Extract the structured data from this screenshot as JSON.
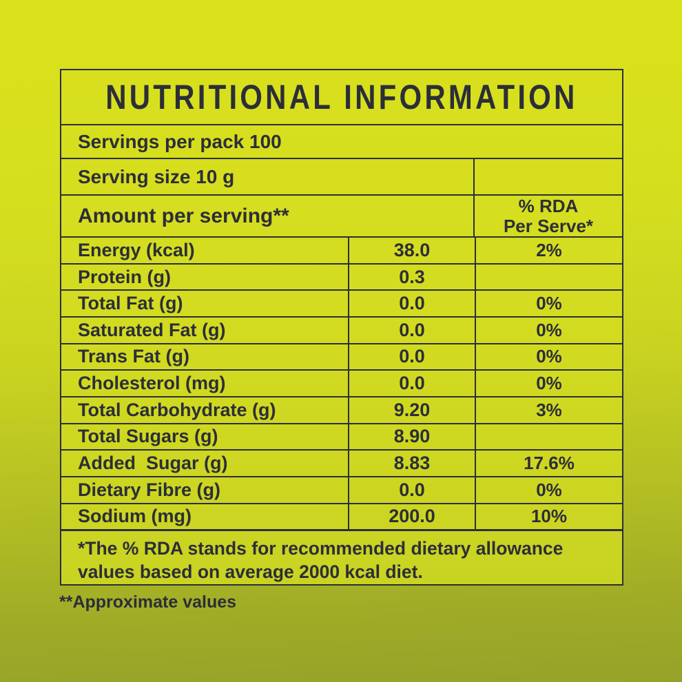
{
  "colors": {
    "background_top": "#d8e01d",
    "background_bottom": "#95a228",
    "text": "#2c2e38",
    "border": "#2c2e38"
  },
  "table": {
    "title": "NUTRITIONAL INFORMATION",
    "servings_per_pack": "Servings per pack 100",
    "serving_size": "Serving size 10 g",
    "amount_header": "Amount per serving**",
    "rda_header_line1": "% RDA",
    "rda_header_line2": "Per Serve*",
    "rows": [
      {
        "label": "Energy (kcal)",
        "value": "38.0",
        "rda": "2%",
        "bold": false
      },
      {
        "label": "Protein (g)",
        "value": "0.3",
        "rda": "",
        "bold": false
      },
      {
        "label": "Total Fat (g)",
        "value": "0.0",
        "rda": "0%",
        "bold": false
      },
      {
        "label": "Saturated Fat (g)",
        "value": "0.0",
        "rda": "0%",
        "bold": true
      },
      {
        "label": "Trans Fat (g)",
        "value": "0.0",
        "rda": "0%",
        "bold": false
      },
      {
        "label": "Cholesterol (mg)",
        "value": "0.0",
        "rda": "0%",
        "bold": false
      },
      {
        "label": "Total Carbohydrate (g)",
        "value": "9.20",
        "rda": "3%",
        "bold": false
      },
      {
        "label": "Total Sugars (g)",
        "value": "8.90",
        "rda": "",
        "bold": true
      },
      {
        "label": "Added  Sugar (g)",
        "value": "8.83",
        "rda": "17.6%",
        "bold": false
      },
      {
        "label": "Dietary Fibre (g)",
        "value": "0.0",
        "rda": "0%",
        "bold": false
      },
      {
        "label": "Sodium (mg)",
        "value": "200.0",
        "rda": "10%",
        "bold": true
      }
    ],
    "footnote": "*The % RDA stands for recommended dietary allowance values based on average 2000 kcal diet."
  },
  "approx_note": "**Approximate values"
}
